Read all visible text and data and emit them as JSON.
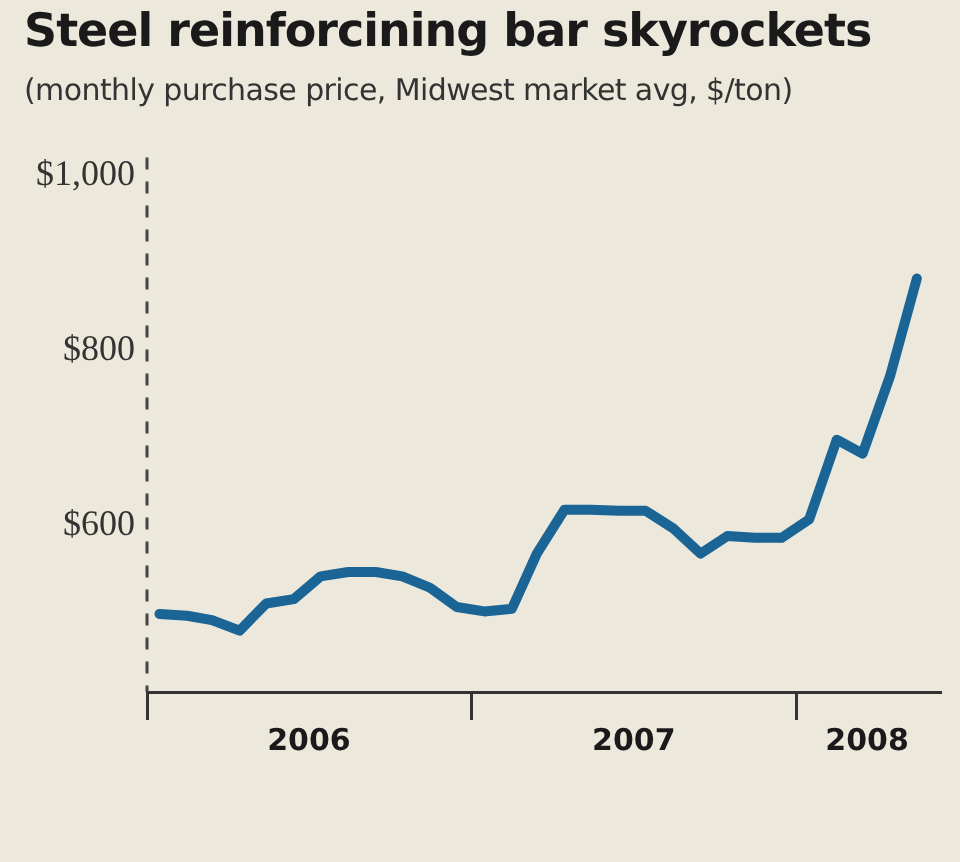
{
  "chart_data": {
    "type": "line",
    "title": "Steel reinforcining bar skyrockets",
    "subtitle": "(monthly purchase price, Midwest market avg, $/ton)",
    "x": [
      "2006-01-15",
      "2006-02-15",
      "2006-03-15",
      "2006-04-15",
      "2006-05-15",
      "2006-06-15",
      "2006-07-15",
      "2006-08-15",
      "2006-09-15",
      "2006-10-15",
      "2006-11-15",
      "2006-12-15",
      "2007-01-15",
      "2007-02-15",
      "2007-03-15",
      "2007-04-15",
      "2007-05-15",
      "2007-06-15",
      "2007-07-15",
      "2007-08-15",
      "2007-09-15",
      "2007-10-15",
      "2007-11-15",
      "2007-12-15",
      "2008-01-15",
      "2008-02-15",
      "2008-03-15",
      "2008-04-15",
      "2008-05-15"
    ],
    "series": [
      {
        "color": "#1a6496",
        "values": [
          499,
          497,
          492,
          480,
          511,
          516,
          542,
          547,
          547,
          542,
          529,
          507,
          502,
          505,
          568,
          618,
          618,
          617,
          617,
          597,
          568,
          588,
          586,
          586,
          607,
          698,
          682,
          771,
          882
        ]
      }
    ],
    "xlim": [
      "2006-01-01",
      "2008-06-10"
    ],
    "xticks": [
      {
        "value": "2006-01-01",
        "label": null
      },
      {
        "value": "2006-07-02",
        "label": "2006"
      },
      {
        "value": "2007-01-01",
        "label": null
      },
      {
        "value": "2007-07-02",
        "label": "2007"
      },
      {
        "value": "2008-01-01",
        "label": null
      },
      {
        "value": "2008-03-20",
        "label": "2008"
      }
    ],
    "ylim": [
      410,
      1020
    ],
    "yticks": [
      {
        "value": 600,
        "label": "$600"
      },
      {
        "value": 800,
        "label": "$800"
      },
      {
        "value": 1000,
        "label": "$1,000"
      }
    ],
    "legend": false,
    "marker": "none",
    "line_style": "solid"
  }
}
